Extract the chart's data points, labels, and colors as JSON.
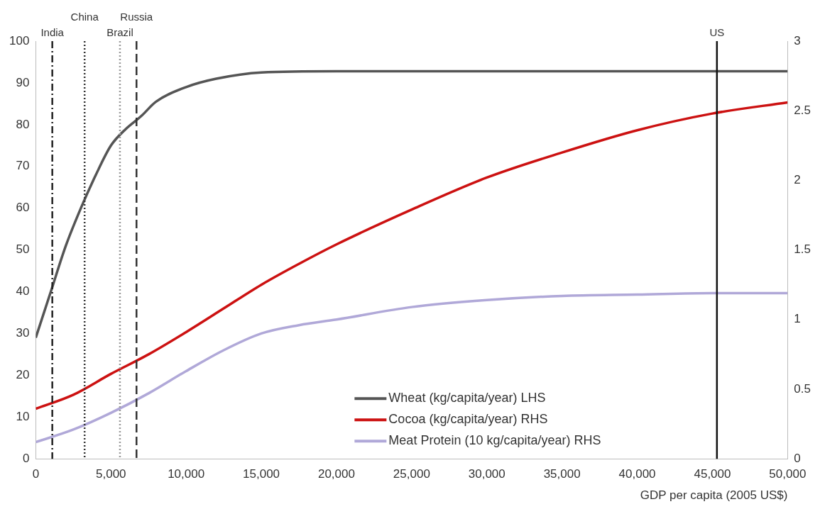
{
  "chart_data": {
    "type": "line",
    "xlabel": "GDP per capita (2005 US$)",
    "x": [
      0,
      1000,
      2000,
      3000,
      4000,
      5000,
      6000,
      7000,
      8000,
      10000,
      12000,
      15000,
      20000,
      30000,
      40000,
      50000
    ],
    "series": [
      {
        "name": "Wheat (kg/capita/year) LHS",
        "color": "#555555",
        "values": [
          29,
          40,
          51,
          60,
          68,
          75,
          79,
          82,
          85.5,
          89,
          91,
          92.5,
          92.8,
          92.8,
          92.8,
          92.8
        ]
      },
      {
        "name": "Cocoa (kg/capita/year) RHS",
        "color": "#cc1111",
        "axis": "y2",
        "x": [
          0,
          2500,
          5000,
          7500,
          10000,
          12500,
          15000,
          17500,
          20000,
          25000,
          30000,
          35000,
          40000,
          45000,
          50000
        ],
        "values": [
          0.36,
          0.46,
          0.61,
          0.75,
          0.91,
          1.08,
          1.25,
          1.4,
          1.54,
          1.79,
          2.02,
          2.2,
          2.36,
          2.48,
          2.56
        ]
      },
      {
        "name": "Meat Protein (10 kg/capita/year) RHS",
        "color": "#b0a8d8",
        "axis": "y2",
        "x": [
          0,
          2500,
          5000,
          7500,
          10000,
          12500,
          15000,
          17500,
          20000,
          25000,
          30000,
          35000,
          40000,
          45000,
          50000
        ],
        "values": [
          0.12,
          0.21,
          0.33,
          0.47,
          0.63,
          0.78,
          0.9,
          0.96,
          1.0,
          1.09,
          1.14,
          1.17,
          1.18,
          1.19,
          1.19
        ]
      }
    ],
    "xlim": [
      0,
      50000
    ],
    "xticks": [
      0,
      {
        "value": 5000,
        "label": "5,000"
      },
      {
        "value": 10000,
        "label": "10,000"
      },
      {
        "value": 15000,
        "label": "15,000"
      },
      {
        "value": 20000,
        "label": "20,000"
      },
      {
        "value": 25000,
        "label": "25,000"
      },
      {
        "value": 30000,
        "label": "30,000"
      },
      {
        "value": 35000,
        "label": "35,000"
      },
      {
        "value": 40000,
        "label": "40,000"
      },
      {
        "value": 45000,
        "label": "45,000"
      },
      {
        "value": 50000,
        "label": "50,000"
      }
    ],
    "ylim": [
      0,
      100
    ],
    "yticks": [
      0,
      10,
      20,
      30,
      40,
      50,
      60,
      70,
      80,
      90,
      100
    ],
    "y2lim": [
      0,
      3
    ],
    "y2ticks": [
      0,
      0.5,
      1,
      1.5,
      2,
      2.5,
      3
    ],
    "ref_lines": [
      {
        "axis": "x",
        "value": 1100,
        "label": "India",
        "color": "#222222",
        "line_style": "dashdot"
      },
      {
        "axis": "x",
        "value": 3250,
        "label": "China",
        "color": "#333333",
        "line_style": "dotted"
      },
      {
        "axis": "x",
        "value": 5600,
        "label": "Brazil",
        "color": "#999999",
        "line_style": "dotted"
      },
      {
        "axis": "x",
        "value": 6700,
        "label": "Russia",
        "color": "#333333",
        "line_style": "dashed"
      },
      {
        "axis": "x",
        "value": 45300,
        "label": "US",
        "color": "#111111",
        "line_style": "solid"
      }
    ],
    "grid": false,
    "legend": "bottom right",
    "marker": "none",
    "line_style": "solid"
  }
}
